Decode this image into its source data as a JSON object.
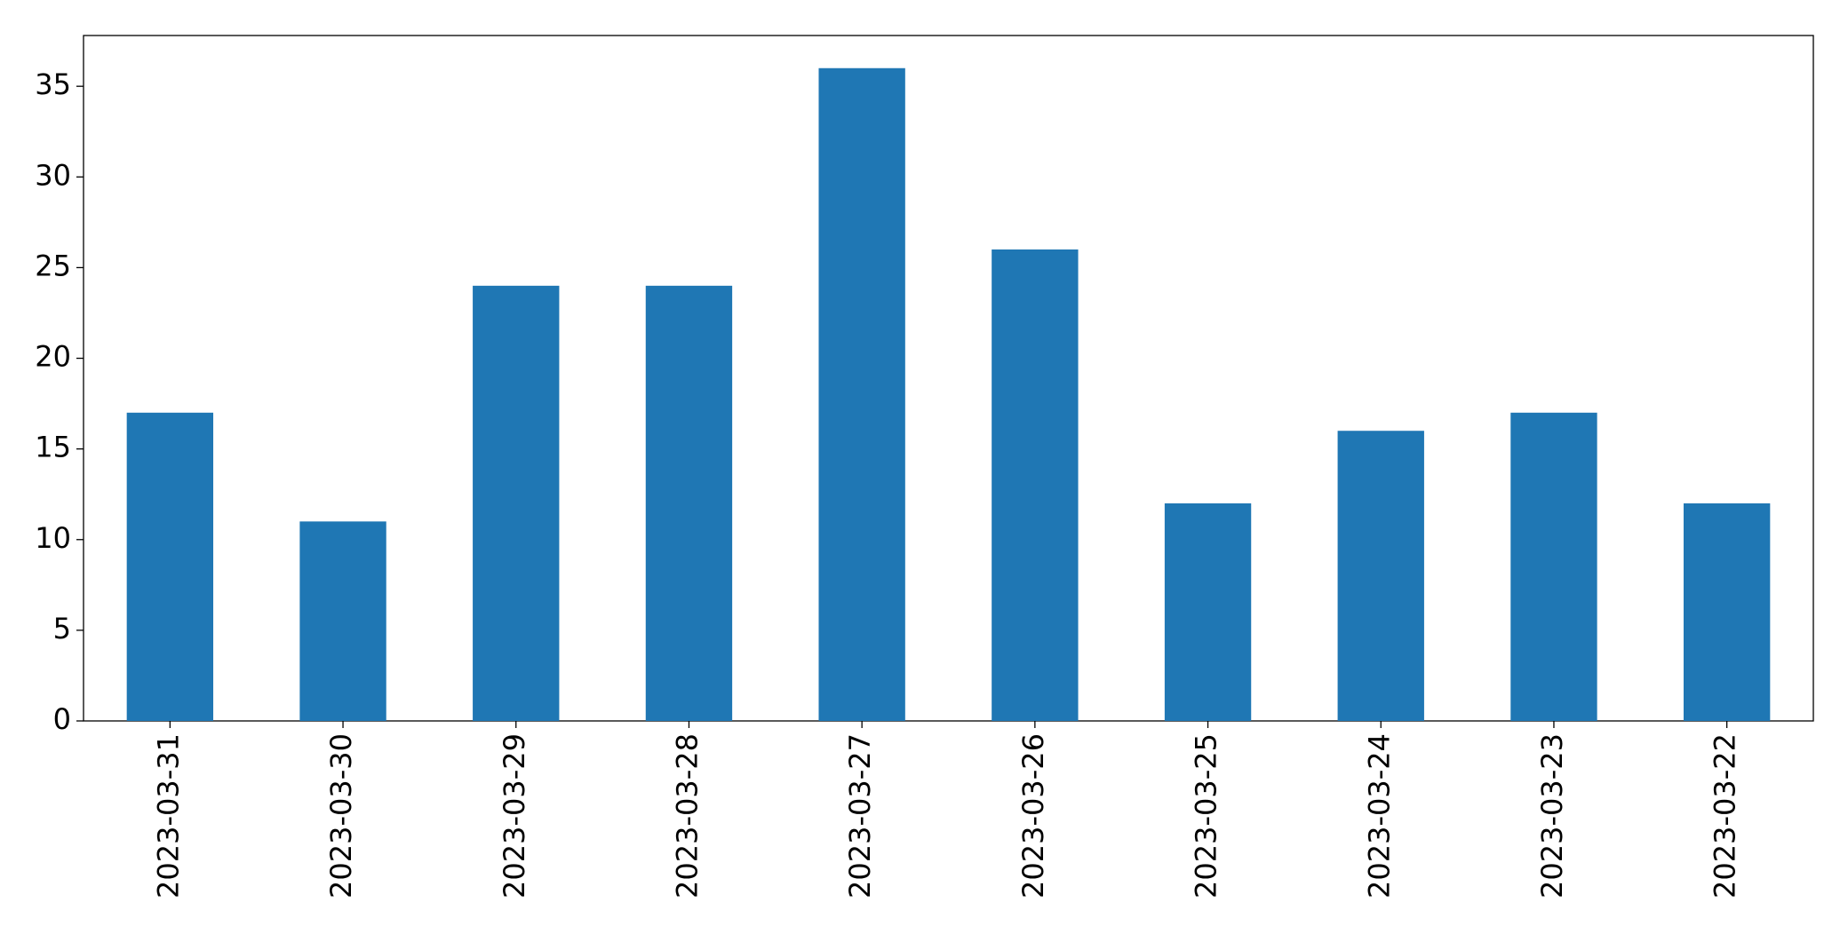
{
  "chart_data": {
    "type": "bar",
    "categories": [
      "2023-03-31",
      "2023-03-30",
      "2023-03-29",
      "2023-03-28",
      "2023-03-27",
      "2023-03-26",
      "2023-03-25",
      "2023-03-24",
      "2023-03-23",
      "2023-03-22"
    ],
    "values": [
      17,
      11,
      24,
      24,
      36,
      26,
      12,
      16,
      17,
      12
    ],
    "color": "#1f77b4",
    "ylim": [
      0,
      37.8
    ],
    "yticks": [
      0,
      5,
      10,
      15,
      20,
      25,
      30,
      35
    ],
    "grid": false
  }
}
